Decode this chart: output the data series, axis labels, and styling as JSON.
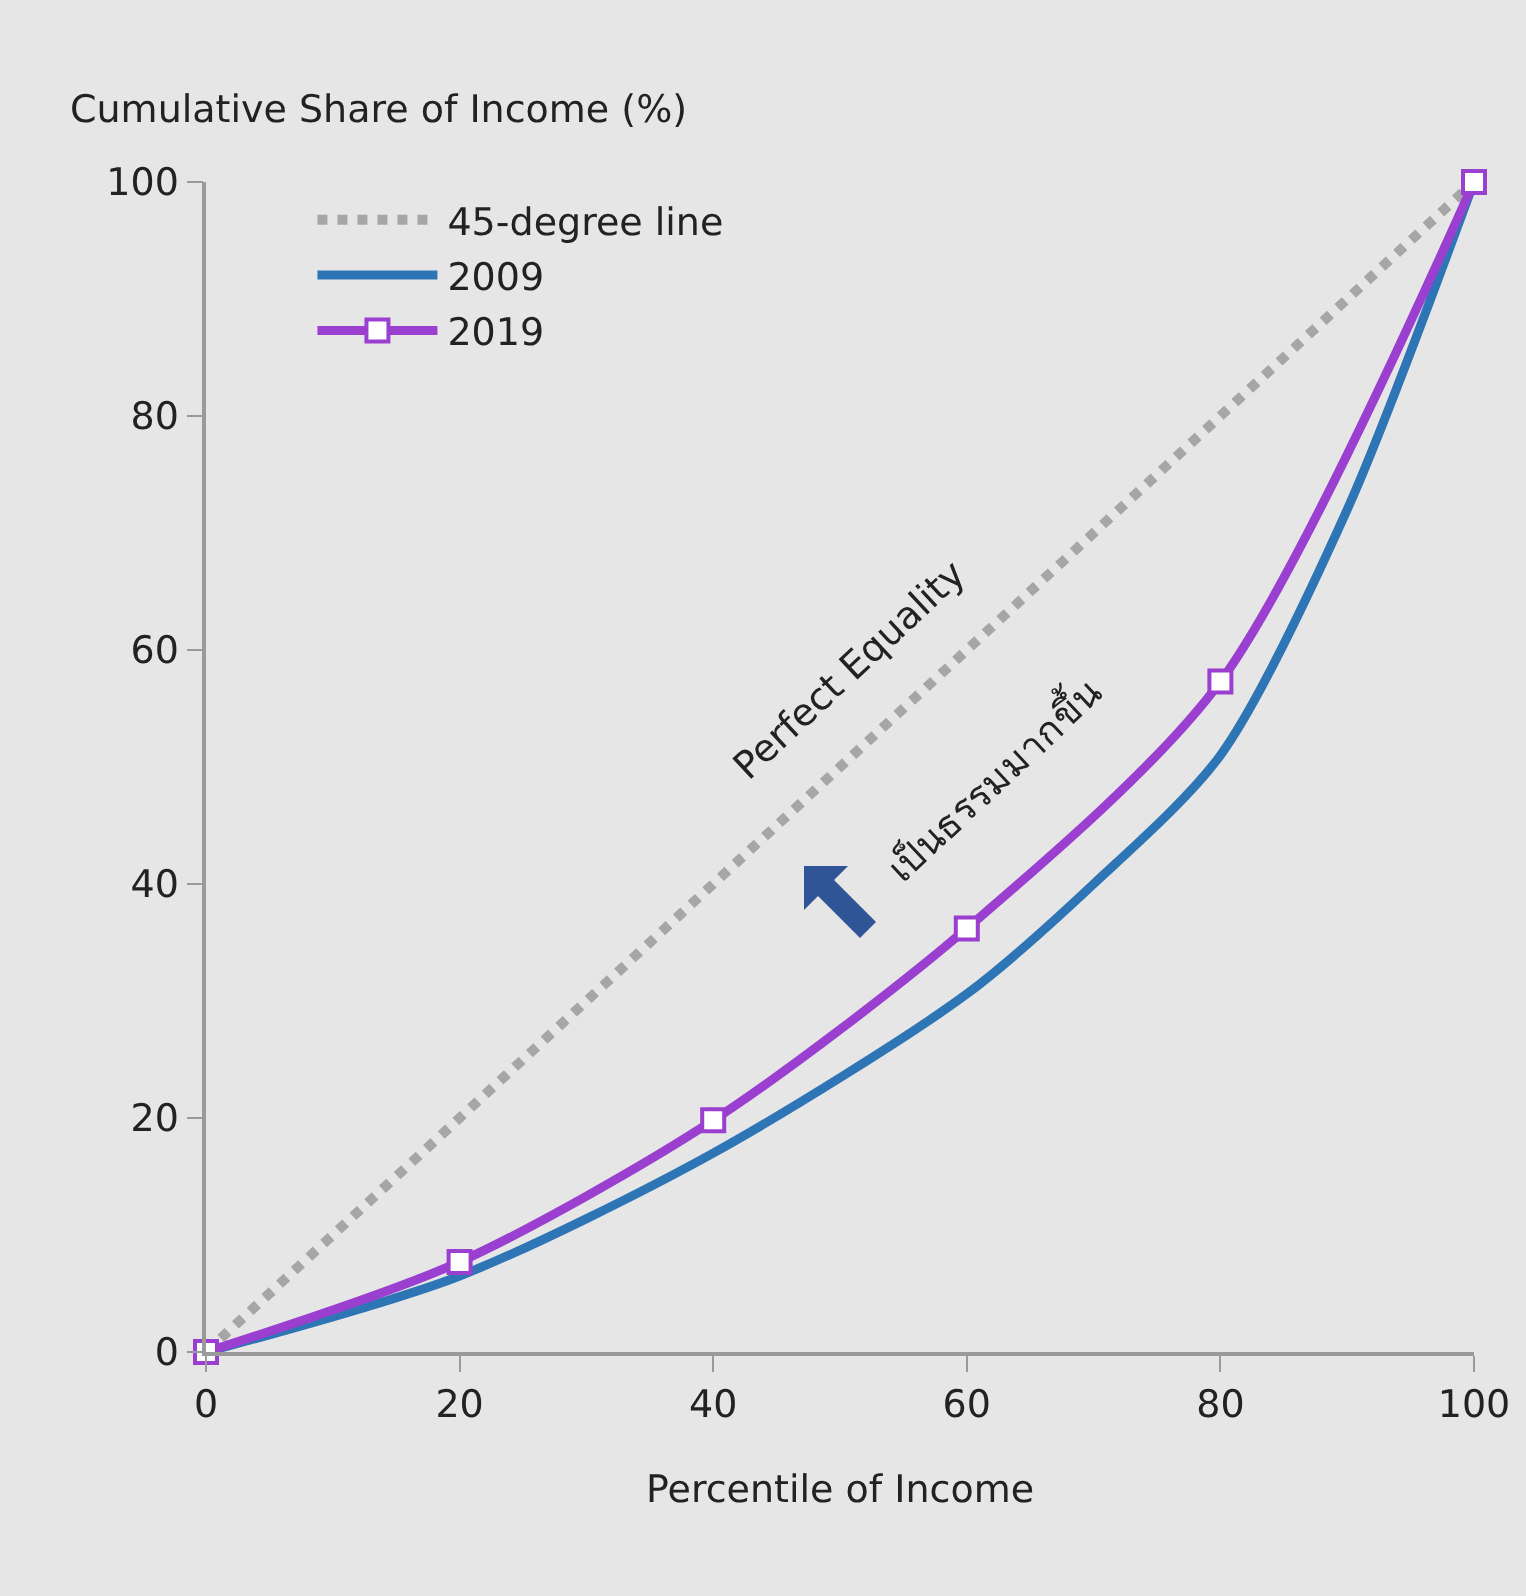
{
  "chart_data": {
    "type": "line",
    "xlabel": "Percentile of Income",
    "ylabel": "Cumulative Share of Income (%)",
    "xlim": [
      0,
      100
    ],
    "xticks": [
      0,
      20,
      40,
      60,
      80,
      100
    ],
    "ylim": [
      0,
      100
    ],
    "yticks": [
      0,
      20,
      40,
      60,
      80,
      100
    ],
    "grid": false,
    "legend": "top left",
    "series": [
      {
        "name": "45-degree line",
        "color": "#a6a6a6",
        "line_style": "dotted",
        "marker": "none",
        "x": [
          0,
          100
        ],
        "values": [
          0,
          100
        ]
      },
      {
        "name": "2009",
        "color": "#2e75b6",
        "line_style": "solid",
        "marker": "none",
        "x": [
          0,
          20,
          40,
          60,
          70,
          80,
          90,
          100
        ],
        "values": [
          0,
          6.5,
          17,
          30.6,
          40,
          51,
          72,
          100
        ]
      },
      {
        "name": "2019",
        "color": "#9b3fd0",
        "line_style": "solid",
        "marker": "square",
        "x": [
          0,
          20,
          40,
          60,
          80,
          100
        ],
        "values": [
          0,
          7.7,
          19.8,
          36.2,
          57.3,
          100
        ]
      }
    ],
    "annotations": [
      "Perfect Equality",
      "เป็นธรรมมากขึ้น"
    ]
  }
}
